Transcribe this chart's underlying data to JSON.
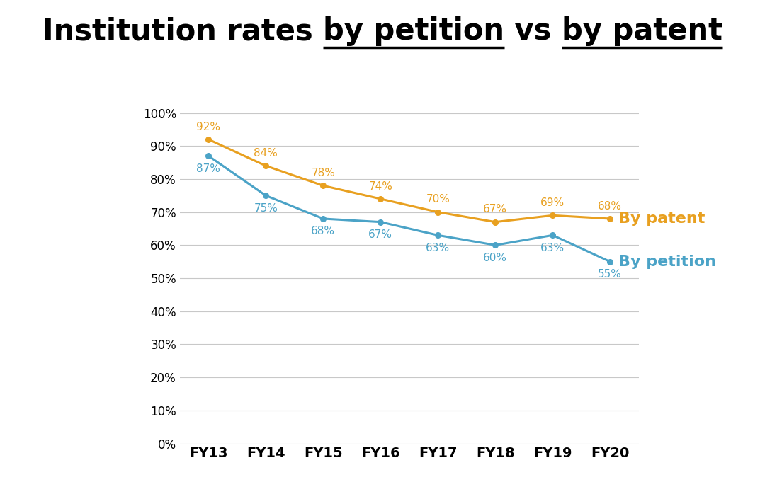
{
  "categories": [
    "FY13",
    "FY14",
    "FY15",
    "FY16",
    "FY17",
    "FY18",
    "FY19",
    "FY20"
  ],
  "by_patent": [
    0.92,
    0.84,
    0.78,
    0.74,
    0.7,
    0.67,
    0.69,
    0.68
  ],
  "by_petition": [
    0.87,
    0.75,
    0.68,
    0.67,
    0.63,
    0.6,
    0.63,
    0.55
  ],
  "by_patent_labels": [
    "92%",
    "84%",
    "78%",
    "74%",
    "70%",
    "67%",
    "69%",
    "68%"
  ],
  "by_petition_labels": [
    "87%",
    "75%",
    "68%",
    "67%",
    "63%",
    "60%",
    "63%",
    "55%"
  ],
  "patent_color": "#E8A020",
  "petition_color": "#4BA3C7",
  "ylim": [
    0.0,
    1.05
  ],
  "yticks": [
    0.0,
    0.1,
    0.2,
    0.3,
    0.4,
    0.5,
    0.6,
    0.7,
    0.8,
    0.9,
    1.0
  ],
  "ytick_labels": [
    "0%",
    "10%",
    "20%",
    "30%",
    "40%",
    "50%",
    "60%",
    "70%",
    "80%",
    "90%",
    "100%"
  ],
  "legend_patent_label": "By patent",
  "legend_petition_label": "By petition",
  "bg_color": "#FFFFFF",
  "grid_color": "#C8C8C8",
  "title_fontsize": 30,
  "label_fontsize": 11,
  "axis_tick_fontsize": 12,
  "legend_fontsize": 16,
  "title_parts": [
    "Institution rates ",
    "by petition",
    " vs ",
    "by patent"
  ],
  "title_underline": [
    false,
    true,
    false,
    true
  ]
}
